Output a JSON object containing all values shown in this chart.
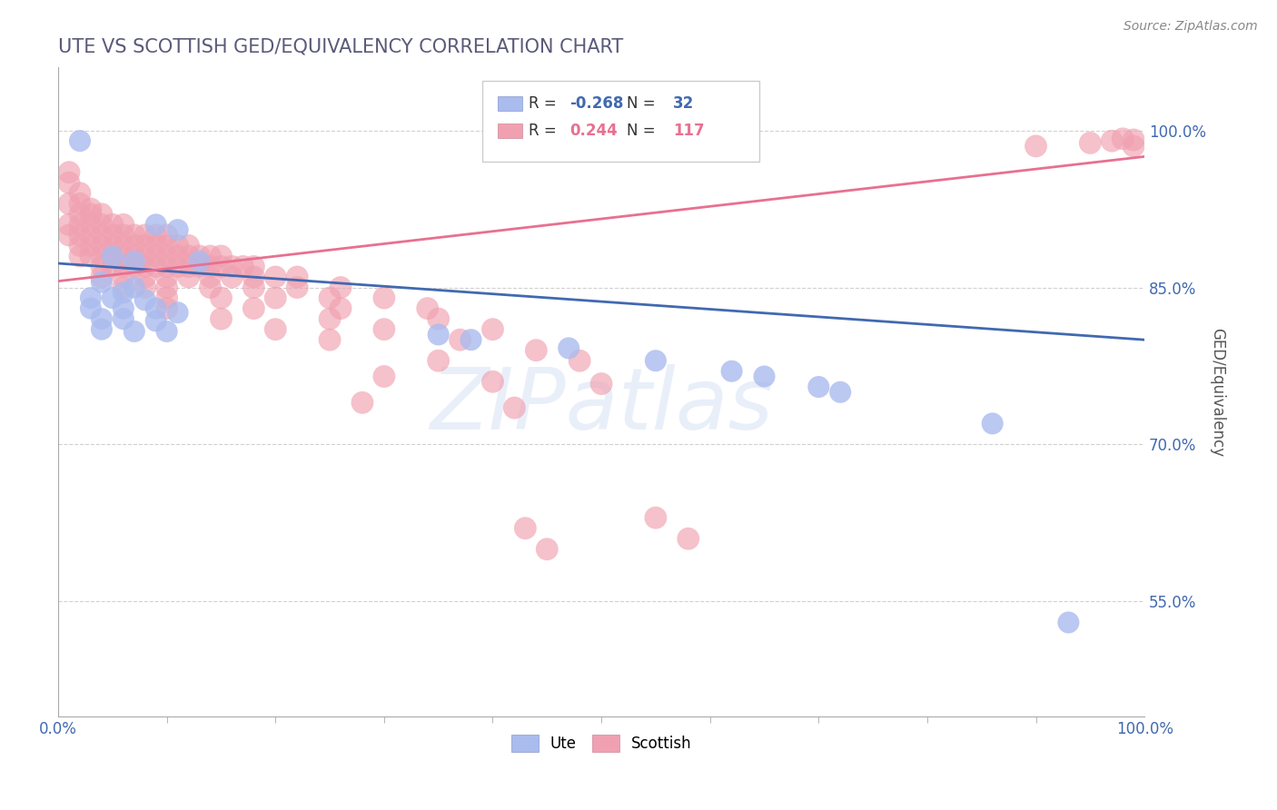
{
  "title": "UTE VS SCOTTISH GED/EQUIVALENCY CORRELATION CHART",
  "source_text": "Source: ZipAtlas.com",
  "ylabel": "GED/Equivalency",
  "watermark": "ZIPatlas",
  "xlim": [
    0,
    1.0
  ],
  "ylim": [
    0.44,
    1.06
  ],
  "yticks": [
    0.55,
    0.7,
    0.85,
    1.0
  ],
  "ytick_labels": [
    "55.0%",
    "70.0%",
    "85.0%",
    "100.0%"
  ],
  "xticks": [
    0.0,
    1.0
  ],
  "xtick_labels": [
    "0.0%",
    "100.0%"
  ],
  "title_color": "#5a5a7a",
  "title_fontsize": 15,
  "background_color": "#ffffff",
  "grid_color": "#cccccc",
  "ute_color": "#aabbee",
  "scottish_color": "#f0a0b0",
  "ute_line_color": "#4169b0",
  "scottish_line_color": "#e87090",
  "R_ute": -0.268,
  "N_ute": 32,
  "R_scottish": 0.244,
  "N_scottish": 117,
  "ute_line_x0": 0.0,
  "ute_line_y0": 0.873,
  "ute_line_x1": 1.0,
  "ute_line_y1": 0.8,
  "scot_line_x0": 0.0,
  "scot_line_y0": 0.856,
  "scot_line_x1": 1.0,
  "scot_line_y1": 0.975,
  "ute_points": [
    [
      0.02,
      0.99
    ],
    [
      0.09,
      0.91
    ],
    [
      0.11,
      0.905
    ],
    [
      0.05,
      0.88
    ],
    [
      0.07,
      0.875
    ],
    [
      0.13,
      0.875
    ],
    [
      0.04,
      0.855
    ],
    [
      0.06,
      0.845
    ],
    [
      0.07,
      0.85
    ],
    [
      0.03,
      0.84
    ],
    [
      0.05,
      0.84
    ],
    [
      0.08,
      0.838
    ],
    [
      0.03,
      0.83
    ],
    [
      0.06,
      0.83
    ],
    [
      0.09,
      0.83
    ],
    [
      0.11,
      0.826
    ],
    [
      0.04,
      0.82
    ],
    [
      0.06,
      0.82
    ],
    [
      0.09,
      0.818
    ],
    [
      0.04,
      0.81
    ],
    [
      0.07,
      0.808
    ],
    [
      0.1,
      0.808
    ],
    [
      0.35,
      0.805
    ],
    [
      0.38,
      0.8
    ],
    [
      0.47,
      0.792
    ],
    [
      0.55,
      0.78
    ],
    [
      0.62,
      0.77
    ],
    [
      0.65,
      0.765
    ],
    [
      0.7,
      0.755
    ],
    [
      0.72,
      0.75
    ],
    [
      0.86,
      0.72
    ],
    [
      0.93,
      0.53
    ]
  ],
  "scottish_points": [
    [
      0.01,
      0.96
    ],
    [
      0.01,
      0.95
    ],
    [
      0.02,
      0.94
    ],
    [
      0.01,
      0.93
    ],
    [
      0.02,
      0.93
    ],
    [
      0.03,
      0.925
    ],
    [
      0.02,
      0.92
    ],
    [
      0.03,
      0.92
    ],
    [
      0.04,
      0.92
    ],
    [
      0.01,
      0.91
    ],
    [
      0.02,
      0.91
    ],
    [
      0.03,
      0.91
    ],
    [
      0.04,
      0.91
    ],
    [
      0.05,
      0.91
    ],
    [
      0.06,
      0.91
    ],
    [
      0.01,
      0.9
    ],
    [
      0.02,
      0.9
    ],
    [
      0.03,
      0.9
    ],
    [
      0.04,
      0.9
    ],
    [
      0.05,
      0.9
    ],
    [
      0.06,
      0.9
    ],
    [
      0.07,
      0.9
    ],
    [
      0.08,
      0.9
    ],
    [
      0.09,
      0.9
    ],
    [
      0.1,
      0.9
    ],
    [
      0.02,
      0.89
    ],
    [
      0.03,
      0.89
    ],
    [
      0.04,
      0.89
    ],
    [
      0.05,
      0.89
    ],
    [
      0.06,
      0.89
    ],
    [
      0.07,
      0.89
    ],
    [
      0.08,
      0.89
    ],
    [
      0.09,
      0.89
    ],
    [
      0.1,
      0.89
    ],
    [
      0.11,
      0.89
    ],
    [
      0.12,
      0.89
    ],
    [
      0.02,
      0.88
    ],
    [
      0.03,
      0.88
    ],
    [
      0.04,
      0.88
    ],
    [
      0.05,
      0.88
    ],
    [
      0.06,
      0.88
    ],
    [
      0.07,
      0.88
    ],
    [
      0.08,
      0.88
    ],
    [
      0.09,
      0.88
    ],
    [
      0.1,
      0.88
    ],
    [
      0.11,
      0.88
    ],
    [
      0.12,
      0.88
    ],
    [
      0.13,
      0.88
    ],
    [
      0.14,
      0.88
    ],
    [
      0.15,
      0.88
    ],
    [
      0.04,
      0.87
    ],
    [
      0.05,
      0.87
    ],
    [
      0.06,
      0.87
    ],
    [
      0.07,
      0.87
    ],
    [
      0.08,
      0.87
    ],
    [
      0.09,
      0.87
    ],
    [
      0.1,
      0.87
    ],
    [
      0.11,
      0.87
    ],
    [
      0.12,
      0.87
    ],
    [
      0.13,
      0.87
    ],
    [
      0.14,
      0.87
    ],
    [
      0.15,
      0.87
    ],
    [
      0.16,
      0.87
    ],
    [
      0.17,
      0.87
    ],
    [
      0.18,
      0.87
    ],
    [
      0.04,
      0.86
    ],
    [
      0.06,
      0.86
    ],
    [
      0.08,
      0.86
    ],
    [
      0.1,
      0.86
    ],
    [
      0.12,
      0.86
    ],
    [
      0.14,
      0.86
    ],
    [
      0.16,
      0.86
    ],
    [
      0.18,
      0.86
    ],
    [
      0.2,
      0.86
    ],
    [
      0.22,
      0.86
    ],
    [
      0.06,
      0.85
    ],
    [
      0.08,
      0.85
    ],
    [
      0.1,
      0.85
    ],
    [
      0.14,
      0.85
    ],
    [
      0.18,
      0.85
    ],
    [
      0.22,
      0.85
    ],
    [
      0.26,
      0.85
    ],
    [
      0.1,
      0.84
    ],
    [
      0.15,
      0.84
    ],
    [
      0.2,
      0.84
    ],
    [
      0.25,
      0.84
    ],
    [
      0.3,
      0.84
    ],
    [
      0.1,
      0.83
    ],
    [
      0.18,
      0.83
    ],
    [
      0.26,
      0.83
    ],
    [
      0.34,
      0.83
    ],
    [
      0.15,
      0.82
    ],
    [
      0.25,
      0.82
    ],
    [
      0.35,
      0.82
    ],
    [
      0.2,
      0.81
    ],
    [
      0.3,
      0.81
    ],
    [
      0.4,
      0.81
    ],
    [
      0.25,
      0.8
    ],
    [
      0.37,
      0.8
    ],
    [
      0.44,
      0.79
    ],
    [
      0.35,
      0.78
    ],
    [
      0.48,
      0.78
    ],
    [
      0.3,
      0.765
    ],
    [
      0.4,
      0.76
    ],
    [
      0.5,
      0.758
    ],
    [
      0.28,
      0.74
    ],
    [
      0.42,
      0.735
    ],
    [
      0.55,
      0.63
    ],
    [
      0.43,
      0.62
    ],
    [
      0.58,
      0.61
    ],
    [
      0.45,
      0.6
    ],
    [
      0.9,
      0.985
    ],
    [
      0.95,
      0.988
    ],
    [
      0.97,
      0.99
    ],
    [
      0.98,
      0.992
    ],
    [
      0.99,
      0.991
    ],
    [
      0.99,
      0.985
    ]
  ]
}
